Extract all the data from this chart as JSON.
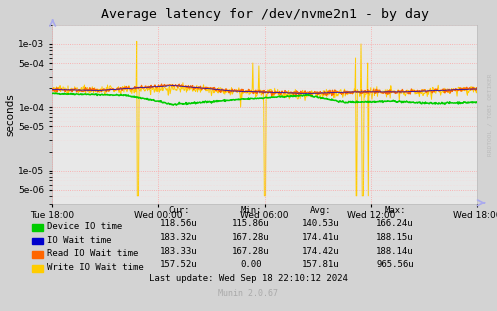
{
  "title": "Average latency for /dev/nvme2n1 - by day",
  "ylabel": "seconds",
  "bg_color": "#d3d3d3",
  "plot_bg_color": "#e8e8e8",
  "ylim_min": 3e-06,
  "ylim_max": 0.002,
  "xtick_labels": [
    "Tue 18:00",
    "Wed 00:00",
    "Wed 06:00",
    "Wed 12:00",
    "Wed 18:00"
  ],
  "ytick_labels": [
    "5e-06",
    "1e-05",
    "5e-05",
    "1e-04",
    "5e-04",
    "1e-03"
  ],
  "ytick_vals": [
    5e-06,
    1e-05,
    5e-05,
    0.0001,
    0.0005,
    0.001
  ],
  "legend": [
    {
      "label": "Device IO time",
      "color": "#00cc00"
    },
    {
      "label": "IO Wait time",
      "color": "#0000cc"
    },
    {
      "label": "Read IO Wait time",
      "color": "#ff6600"
    },
    {
      "label": "Write IO Wait time",
      "color": "#ffcc00"
    }
  ],
  "table_headers": [
    "Cur:",
    "Min:",
    "Avg:",
    "Max:"
  ],
  "table_rows": [
    [
      "Device IO time",
      "118.56u",
      "115.86u",
      "140.53u",
      "166.24u"
    ],
    [
      "IO Wait time",
      "183.32u",
      "167.28u",
      "174.41u",
      "188.15u"
    ],
    [
      "Read IO Wait time",
      "183.33u",
      "167.28u",
      "174.42u",
      "188.14u"
    ],
    [
      "Write IO Wait time",
      "157.52u",
      "0.00",
      "157.81u",
      "965.56u"
    ]
  ],
  "footer": "Last update: Wed Sep 18 22:10:12 2024",
  "munin_text": "Munin 2.0.67",
  "rrdtool_text": "RRDTOOL / TOBI OETIKER"
}
